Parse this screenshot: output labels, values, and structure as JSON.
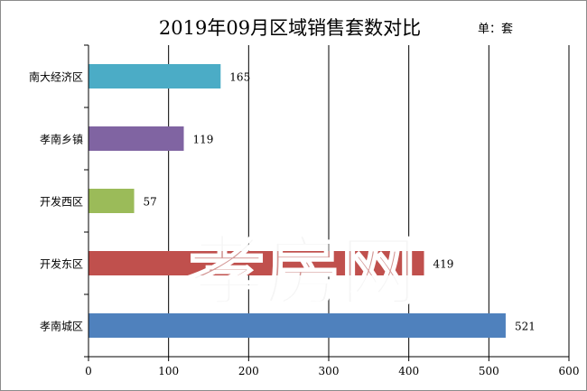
{
  "chart_data": {
    "type": "bar",
    "orientation": "horizontal",
    "title": "2019年09月区域销售套数对比",
    "unit": "单：套",
    "categories": [
      "南大经济区",
      "孝南乡镇",
      "开发西区",
      "开发东区",
      "孝南城区"
    ],
    "values": [
      165,
      119,
      57,
      419,
      521
    ],
    "colors": [
      "#4bacc6",
      "#8064a2",
      "#9bbb59",
      "#c0504d",
      "#4f81bd"
    ],
    "xlim": [
      0,
      600
    ],
    "xticks": [
      "0",
      "100",
      "200",
      "300",
      "400",
      "500",
      "600"
    ],
    "grid": true,
    "legend": "none"
  },
  "watermark": "孝房网"
}
